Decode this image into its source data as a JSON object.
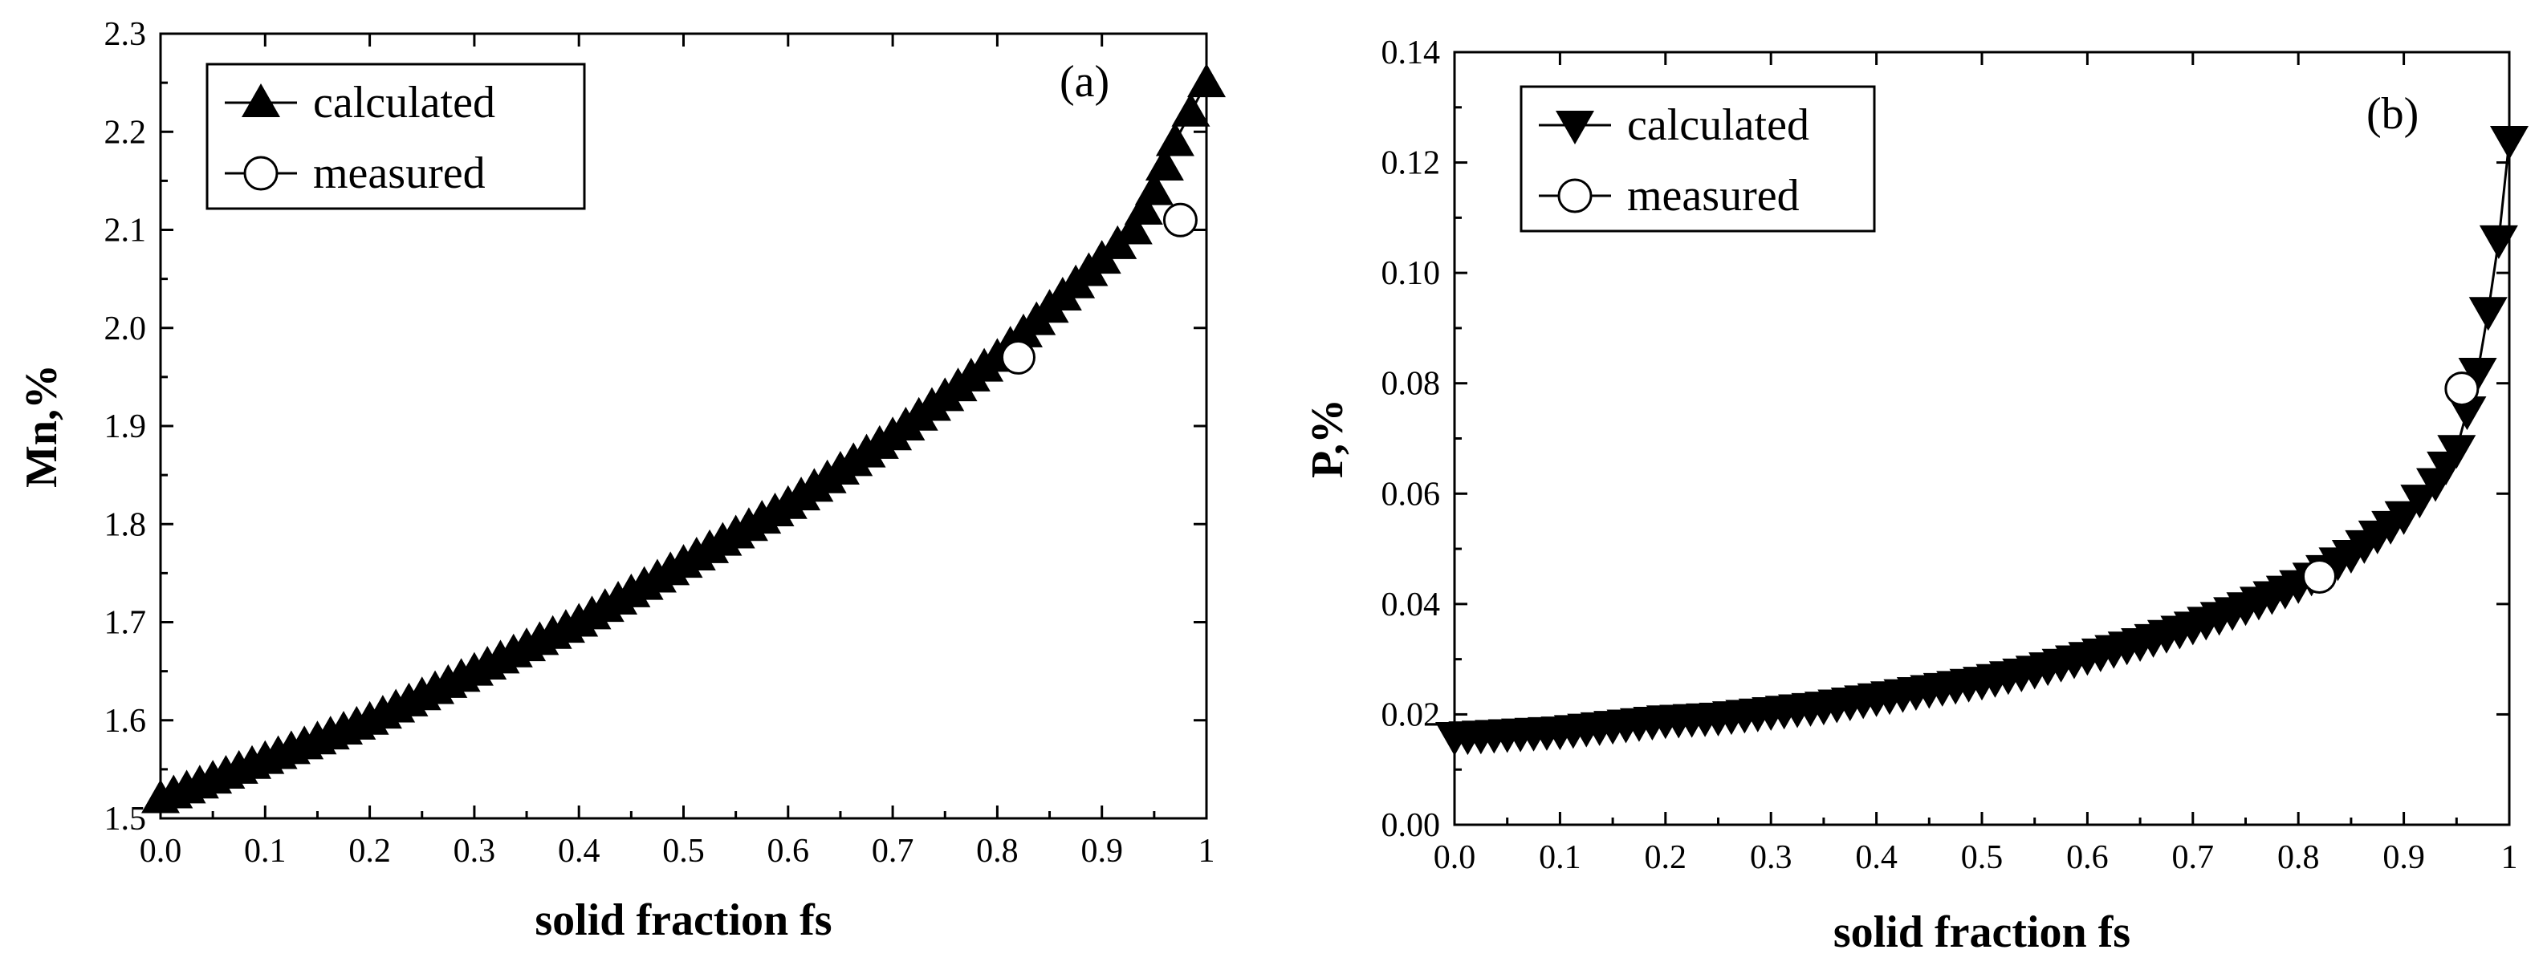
{
  "chart_data": [
    {
      "type": "line",
      "panel_label": "(a)",
      "xlabel": "solid fraction fs",
      "ylabel": "Mn,%",
      "xlim": [
        0.0,
        1.0
      ],
      "ylim": [
        1.5,
        2.3
      ],
      "x_ticks": [
        0.0,
        0.1,
        0.2,
        0.3,
        0.4,
        0.5,
        0.6,
        0.7,
        0.8,
        0.9,
        1.0
      ],
      "x_tick_labels": [
        "0.0",
        "0.1",
        "0.2",
        "0.3",
        "0.4",
        "0.5",
        "0.6",
        "0.7",
        "0.8",
        "0.9",
        "1"
      ],
      "y_ticks": [
        1.5,
        1.6,
        1.7,
        1.8,
        1.9,
        2.0,
        2.1,
        2.2,
        2.3
      ],
      "y_tick_labels": [
        "1.5",
        "1.6",
        "1.7",
        "1.8",
        "1.9",
        "2.0",
        "2.1",
        "2.2",
        "2.3"
      ],
      "legend": {
        "position": "top-left",
        "entries": [
          "calculated",
          "measured"
        ]
      },
      "series": [
        {
          "name": "calculated",
          "marker": "triangle-up",
          "points": [
            [
              0.0,
              1.52
            ],
            [
              0.05,
              1.54
            ],
            [
              0.1,
              1.56
            ],
            [
              0.15,
              1.58
            ],
            [
              0.2,
              1.6
            ],
            [
              0.25,
              1.625
            ],
            [
              0.3,
              1.65
            ],
            [
              0.35,
              1.675
            ],
            [
              0.4,
              1.7
            ],
            [
              0.45,
              1.73
            ],
            [
              0.5,
              1.76
            ],
            [
              0.55,
              1.79
            ],
            [
              0.6,
              1.82
            ],
            [
              0.65,
              1.855
            ],
            [
              0.7,
              1.89
            ],
            [
              0.75,
              1.93
            ],
            [
              0.8,
              1.97
            ],
            [
              0.85,
              2.02
            ],
            [
              0.9,
              2.07
            ],
            [
              0.93,
              2.1
            ],
            [
              0.95,
              2.14
            ],
            [
              0.97,
              2.19
            ],
            [
              0.985,
              2.22
            ],
            [
              1.0,
              2.25
            ]
          ]
        },
        {
          "name": "measured",
          "marker": "circle-open",
          "points": [
            [
              0.82,
              1.97
            ],
            [
              0.975,
              2.11
            ]
          ]
        }
      ]
    },
    {
      "type": "line",
      "panel_label": "(b)",
      "xlabel": "solid fraction fs",
      "ylabel": "P,%",
      "xlim": [
        0.0,
        1.0
      ],
      "ylim": [
        0.0,
        0.14
      ],
      "x_ticks": [
        0.0,
        0.1,
        0.2,
        0.3,
        0.4,
        0.5,
        0.6,
        0.7,
        0.8,
        0.9,
        1.0
      ],
      "x_tick_labels": [
        "0.0",
        "0.1",
        "0.2",
        "0.3",
        "0.4",
        "0.5",
        "0.6",
        "0.7",
        "0.8",
        "0.9",
        "1"
      ],
      "y_ticks": [
        0.0,
        0.02,
        0.04,
        0.06,
        0.08,
        0.1,
        0.12,
        0.14
      ],
      "y_tick_labels": [
        "0.00",
        "0.02",
        "0.04",
        "0.06",
        "0.08",
        "0.10",
        "0.12",
        "0.14"
      ],
      "legend": {
        "position": "top-left",
        "entries": [
          "calculated",
          "measured"
        ]
      },
      "series": [
        {
          "name": "calculated",
          "marker": "triangle-down",
          "points": [
            [
              0.0,
              0.016
            ],
            [
              0.05,
              0.0165
            ],
            [
              0.1,
              0.017
            ],
            [
              0.15,
              0.018
            ],
            [
              0.2,
              0.019
            ],
            [
              0.25,
              0.0195
            ],
            [
              0.3,
              0.0205
            ],
            [
              0.35,
              0.0215
            ],
            [
              0.4,
              0.023
            ],
            [
              0.45,
              0.0245
            ],
            [
              0.5,
              0.026
            ],
            [
              0.55,
              0.028
            ],
            [
              0.6,
              0.0305
            ],
            [
              0.65,
              0.033
            ],
            [
              0.7,
              0.036
            ],
            [
              0.75,
              0.0395
            ],
            [
              0.8,
              0.0435
            ],
            [
              0.85,
              0.049
            ],
            [
              0.9,
              0.056
            ],
            [
              0.93,
              0.062
            ],
            [
              0.95,
              0.068
            ],
            [
              0.96,
              0.075
            ],
            [
              0.97,
              0.082
            ],
            [
              0.98,
              0.093
            ],
            [
              0.99,
              0.106
            ],
            [
              1.0,
              0.124
            ]
          ]
        },
        {
          "name": "measured",
          "marker": "circle-open",
          "points": [
            [
              0.82,
              0.045
            ],
            [
              0.955,
              0.079
            ]
          ]
        }
      ]
    }
  ]
}
